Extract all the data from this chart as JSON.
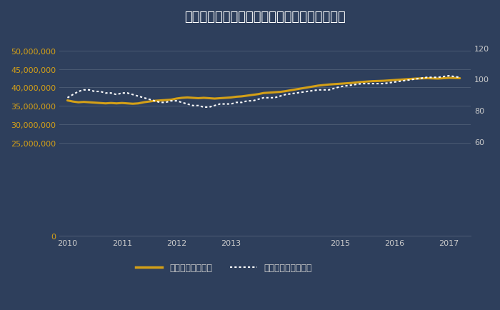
{
  "title": "リーウェイズ指数と不動研住宅価格指数の推移",
  "background_color": "#2e3f5c",
  "title_color": "#ffffff",
  "grid_color": "#4a5a73",
  "left_ylabel_color": "#d4a017",
  "right_ylabel_color": "#cccccc",
  "legend_label_leiways": "リーウェイズ指数",
  "legend_label_fudoken": "不動研住宅価格指数",
  "leiways_color": "#d4a017",
  "fudoken_color": "#ffffff",
  "ylim_left": [
    0,
    55000000
  ],
  "ylim_right": [
    0,
    130
  ],
  "yticks_left": [
    0,
    25000000,
    30000000,
    35000000,
    40000000,
    45000000,
    50000000
  ],
  "yticks_right": [
    60,
    80,
    100,
    120
  ],
  "leiways_x": [
    2010.0,
    2010.1,
    2010.2,
    2010.3,
    2010.4,
    2010.5,
    2010.6,
    2010.7,
    2010.8,
    2010.9,
    2011.0,
    2011.1,
    2011.2,
    2011.3,
    2011.4,
    2011.5,
    2011.6,
    2011.7,
    2011.8,
    2011.9,
    2012.0,
    2012.1,
    2012.2,
    2012.3,
    2012.4,
    2012.5,
    2012.6,
    2012.7,
    2012.8,
    2012.9,
    2013.0,
    2013.1,
    2013.2,
    2013.3,
    2013.4,
    2013.5,
    2013.6,
    2013.7,
    2013.8,
    2013.9,
    2014.0,
    2014.2,
    2014.4,
    2014.6,
    2014.8,
    2015.0,
    2015.2,
    2015.4,
    2015.6,
    2015.8,
    2016.0,
    2016.2,
    2016.4,
    2016.6,
    2016.8,
    2017.0,
    2017.2
  ],
  "leiways_y": [
    36500000,
    36200000,
    36000000,
    36100000,
    36000000,
    35900000,
    35800000,
    35700000,
    35800000,
    35700000,
    35800000,
    35700000,
    35600000,
    35700000,
    36000000,
    36200000,
    36400000,
    36500000,
    36600000,
    36700000,
    37000000,
    37200000,
    37300000,
    37200000,
    37100000,
    37200000,
    37100000,
    37000000,
    37100000,
    37200000,
    37300000,
    37500000,
    37600000,
    37800000,
    38000000,
    38200000,
    38500000,
    38600000,
    38700000,
    38800000,
    39000000,
    39500000,
    40000000,
    40500000,
    40800000,
    41000000,
    41200000,
    41500000,
    41700000,
    41800000,
    42000000,
    42200000,
    42400000,
    42500000,
    42400000,
    42600000,
    42500000
  ],
  "fudoken_x": [
    2010.0,
    2010.1,
    2010.2,
    2010.3,
    2010.4,
    2010.5,
    2010.6,
    2010.7,
    2010.8,
    2010.9,
    2011.0,
    2011.1,
    2011.2,
    2011.3,
    2011.4,
    2011.5,
    2011.6,
    2011.7,
    2011.8,
    2011.9,
    2012.0,
    2012.1,
    2012.2,
    2012.3,
    2012.4,
    2012.5,
    2012.6,
    2012.7,
    2012.8,
    2012.9,
    2013.0,
    2013.1,
    2013.2,
    2013.3,
    2013.4,
    2013.5,
    2013.6,
    2013.7,
    2013.8,
    2013.9,
    2014.0,
    2014.2,
    2014.4,
    2014.6,
    2014.8,
    2015.0,
    2015.2,
    2015.4,
    2015.6,
    2015.8,
    2016.0,
    2016.2,
    2016.4,
    2016.6,
    2016.8,
    2017.0,
    2017.2
  ],
  "fudoken_y": [
    88,
    90,
    92,
    93,
    93,
    92,
    92,
    91,
    91,
    90,
    91,
    91,
    90,
    89,
    88,
    87,
    86,
    85,
    85,
    86,
    86,
    85,
    84,
    83,
    83,
    82,
    82,
    83,
    84,
    84,
    84,
    85,
    85,
    86,
    86,
    87,
    88,
    88,
    88,
    89,
    90,
    91,
    92,
    93,
    93,
    95,
    96,
    97,
    97,
    97,
    98,
    99,
    100,
    101,
    101,
    102,
    101
  ],
  "xtick_positions": [
    2010,
    2011,
    2012,
    2013,
    2015,
    2016,
    2017
  ],
  "xtick_labels": [
    "2010",
    "2011",
    "2012",
    "2013",
    "2015",
    "2016",
    "2017"
  ]
}
